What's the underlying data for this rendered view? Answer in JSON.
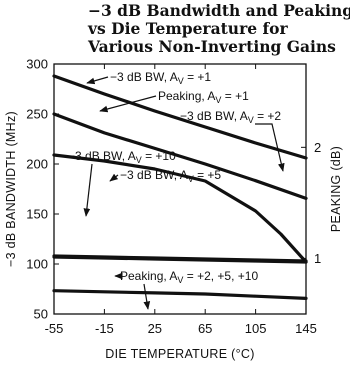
{
  "title_lines": [
    "−3 dB Bandwidth and Peaking",
    "vs Die Temperature for",
    "Various Non-Inverting Gains"
  ],
  "chart_data": {
    "type": "line",
    "xlabel": "DIE TEMPERATURE (°C)",
    "ylabel_left": "−3 dB BANDWIDTH (MHz)",
    "ylabel_right": "PEAKING (dB)",
    "xlim": [
      -55,
      145
    ],
    "ylim_left": [
      50,
      300
    ],
    "ylim_right": [
      0.5,
      2.75
    ],
    "x_ticks": [
      "-55",
      "-15",
      "25",
      "65",
      "105",
      "145"
    ],
    "y_left_ticks": [
      "50",
      "100",
      "150",
      "200",
      "250",
      "300"
    ],
    "y_right_ticks": [
      "1",
      "2"
    ],
    "grid": false,
    "series": [
      {
        "name": "-3 dB BW, AV = +1",
        "axis": "left",
        "x": [
          -55,
          -15,
          25,
          65,
          105,
          145
        ],
        "y": [
          288,
          270,
          253,
          237,
          221,
          206
        ]
      },
      {
        "name": "Peaking, AV = +1",
        "axis": "right",
        "x": [
          -55,
          -15,
          25,
          65,
          105,
          145
        ],
        "y": [
          2.3,
          2.13,
          1.99,
          1.85,
          1.7,
          1.54
        ]
      },
      {
        "name": "-3 dB BW, AV = +2",
        "axis": "left",
        "x": [
          -55,
          -15,
          25,
          65,
          105,
          125,
          145
        ],
        "y": [
          209,
          203,
          195,
          183,
          153,
          130,
          102
        ]
      },
      {
        "name": "-3 dB BW, AV = +5",
        "axis": "left",
        "x": [
          -55,
          -15,
          25,
          65,
          105,
          145
        ],
        "y": [
          108,
          107,
          106,
          105,
          104,
          103
        ]
      },
      {
        "name": "-3 dB BW, AV = +10",
        "axis": "left",
        "x": [
          -55,
          -15,
          25,
          65,
          105,
          145
        ],
        "y": [
          107,
          106,
          105,
          104,
          103,
          102
        ]
      },
      {
        "name": "Peaking, AV = +2, +5, +10",
        "axis": "right",
        "x": [
          -55,
          -15,
          25,
          65,
          105,
          145
        ],
        "y": [
          0.71,
          0.7,
          0.69,
          0.68,
          0.66,
          0.64
        ]
      }
    ],
    "annotations": [
      {
        "id": "bw1",
        "label": "−3 dB BW, A",
        "sub": "V",
        "suffix": " = +1"
      },
      {
        "id": "pk1",
        "label": "Peaking, A",
        "sub": "V",
        "suffix": " = +1"
      },
      {
        "id": "bw2",
        "label": "−3 dB BW, A",
        "sub": "V",
        "suffix": " = +2"
      },
      {
        "id": "bw10",
        "label": "−3 dB BW, A",
        "sub": "V",
        "suffix": " = +10"
      },
      {
        "id": "bw5",
        "label": "−3 dB BW, A",
        "sub": "V",
        "suffix": " = +5"
      },
      {
        "id": "pkall",
        "label": "Peaking, A",
        "sub": "V",
        "suffix": " = +2, +5, +10"
      }
    ]
  }
}
